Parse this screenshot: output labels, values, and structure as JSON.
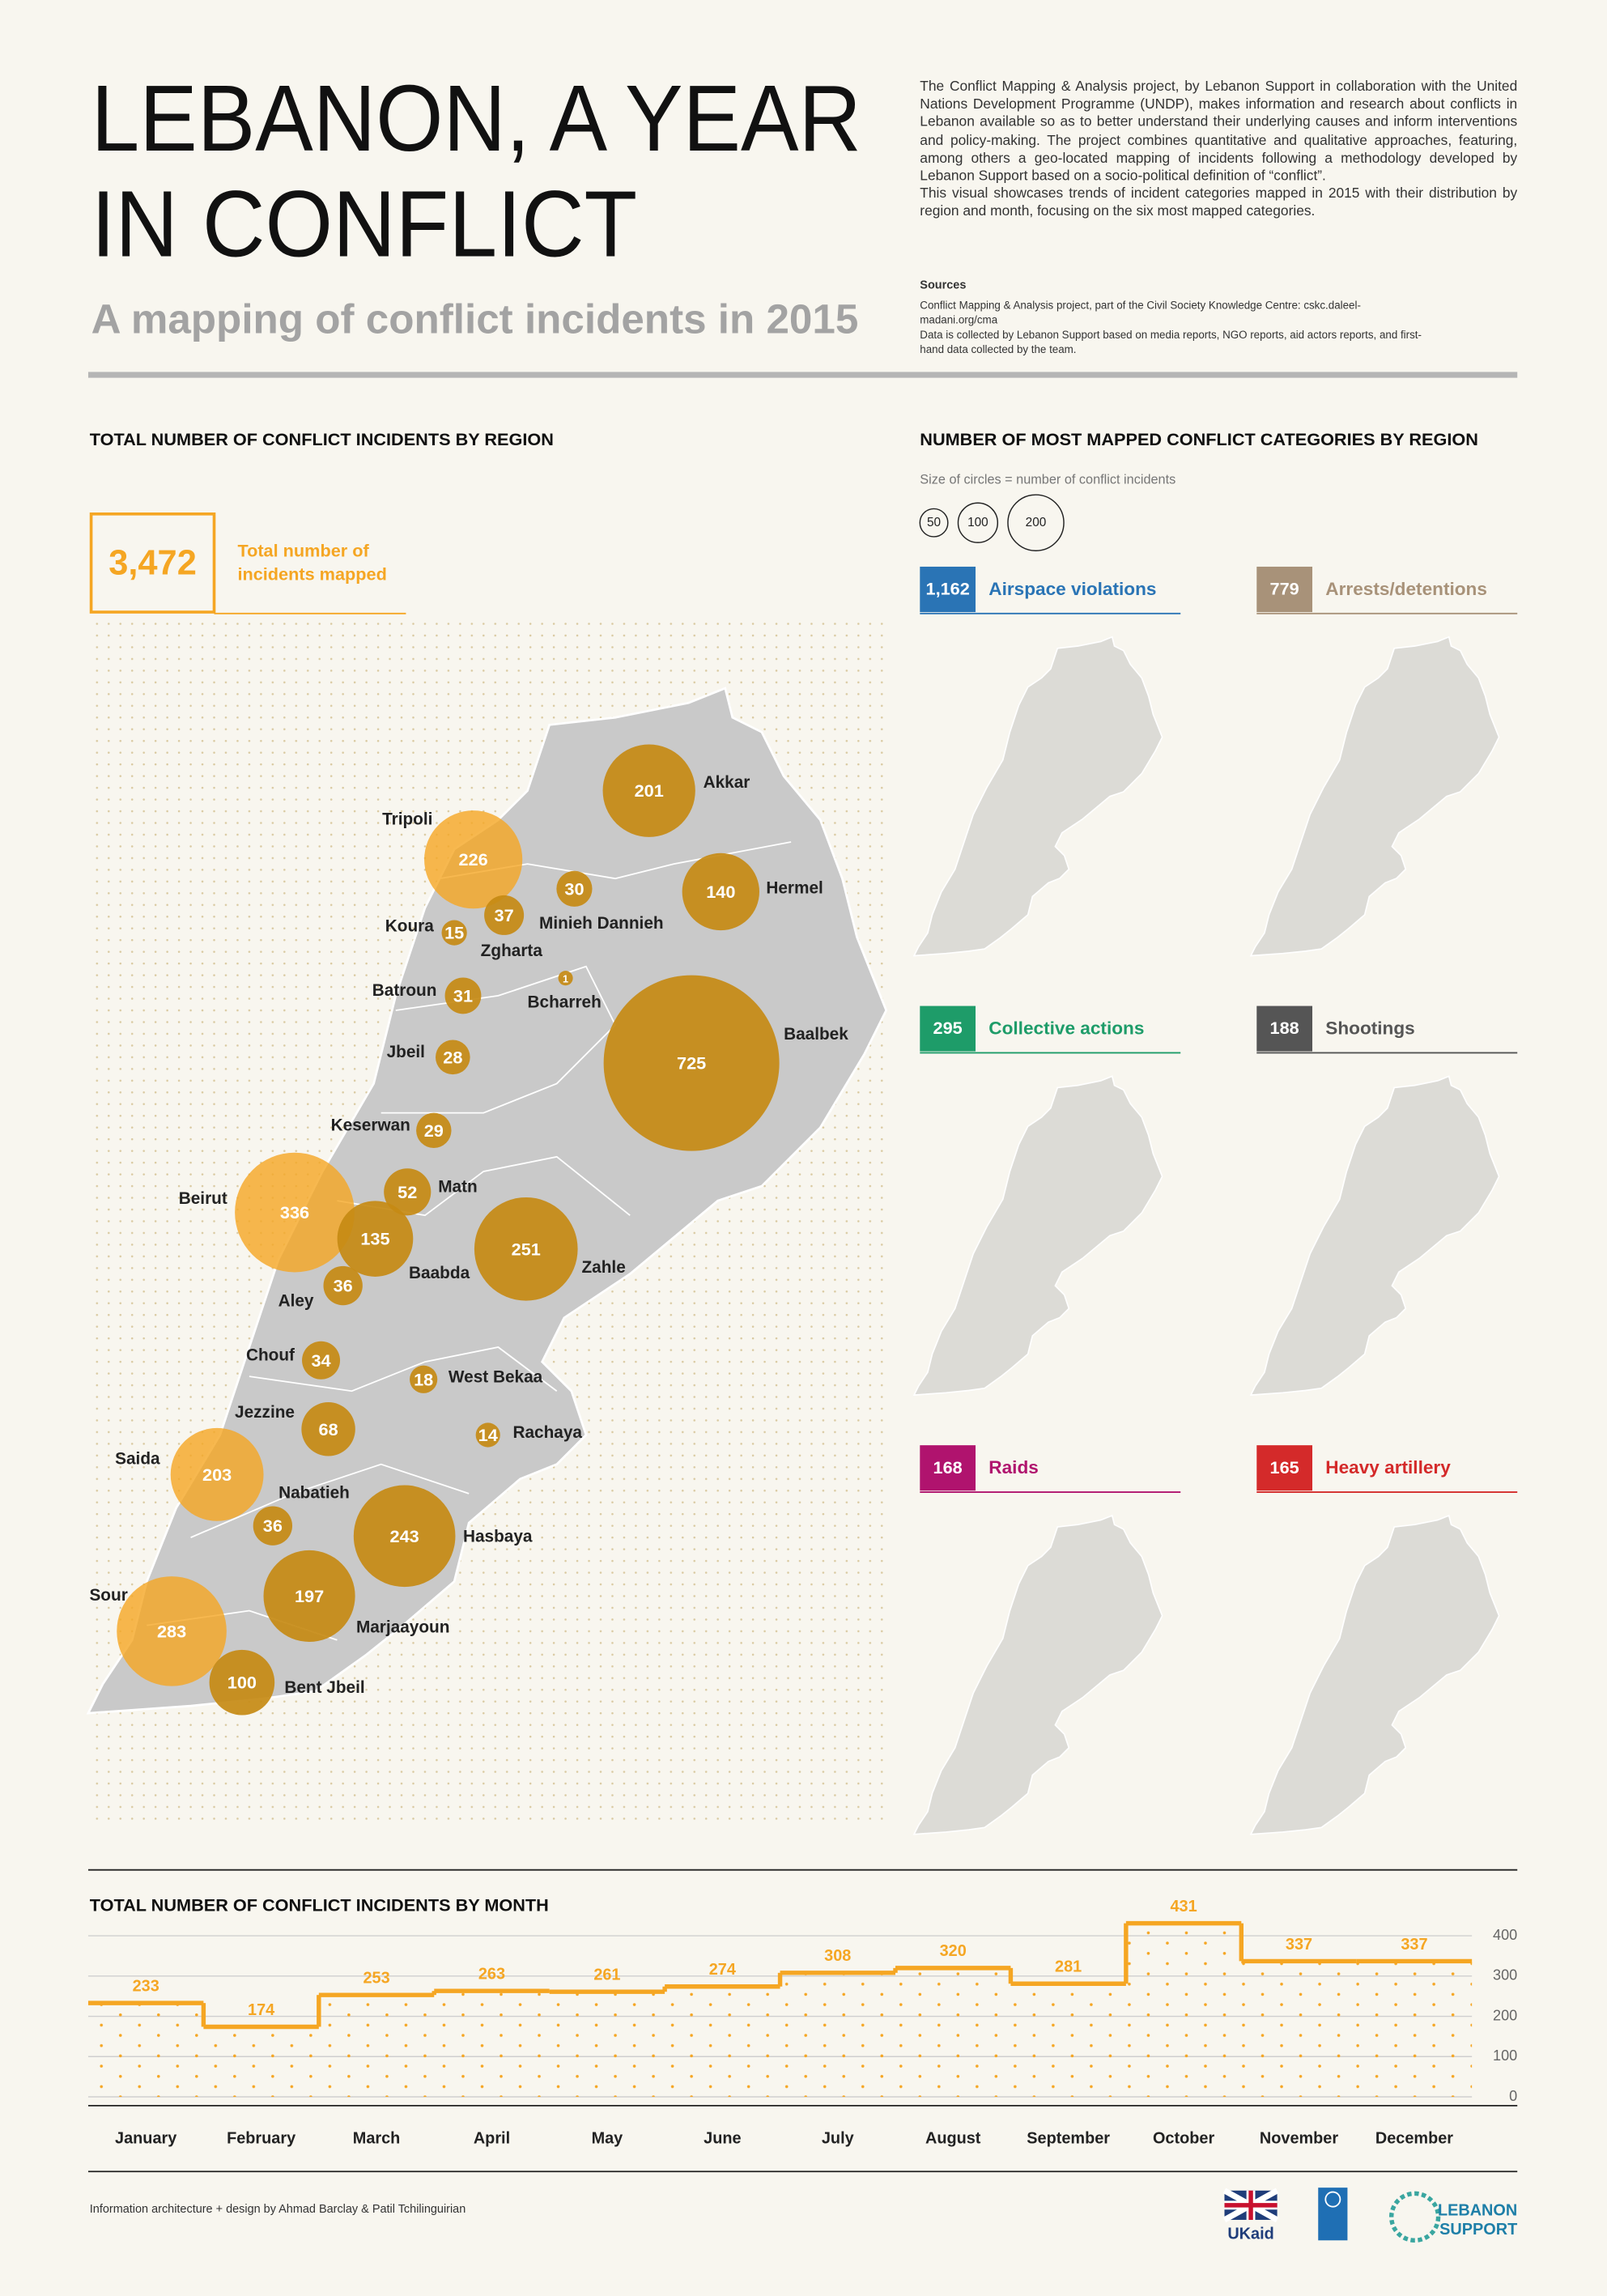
{
  "header": {
    "title_lines": [
      "LEBANON, A YEAR",
      "IN CONFLICT"
    ],
    "subtitle": "A mapping of conflict incidents in 2015",
    "description": "The Conflict Mapping & Analysis project, by Lebanon Support in collaboration with the United Nations Development Programme (UNDP), makes information and research about conflicts in Lebanon available so as to better understand their underlying causes and inform interventions and policy-making. The project combines quantitative and qualitative approaches, featuring, among others a geo-located mapping of incidents following a methodology developed by Lebanon Support based on a socio-political definition of “conflict”.",
    "description_2": "This visual showcases trends of incident categories mapped in 2015 with their distribution by region and month, focusing on the six most mapped categories.",
    "sources_title": "Sources",
    "sources": [
      "Conflict Mapping & Analysis project, part of the Civil Society Knowledge Centre: cskc.daleel-madani.org/cma",
      "Data is collected by Lebanon Support based on media reports, NGO reports, aid actors reports, and first-hand data collected by the team."
    ]
  },
  "region_map": {
    "title": "TOTAL NUMBER OF CONFLICT INCIDENTS BY REGION",
    "total": 3472,
    "total_label": "3,472",
    "total_caption": [
      "Total number of",
      "incidents mapped"
    ],
    "color": "#c68a14",
    "regions": [
      {
        "name": "Akkar",
        "value": 201
      },
      {
        "name": "Tripoli",
        "value": 226
      },
      {
        "name": "Minieh Dannieh",
        "value": 30
      },
      {
        "name": "Hermel",
        "value": 140
      },
      {
        "name": "Koura",
        "value": 15
      },
      {
        "name": "Zgharta",
        "value": 37
      },
      {
        "name": "Batroun",
        "value": 31
      },
      {
        "name": "Bcharreh",
        "value": 1
      },
      {
        "name": "Baalbek",
        "value": 725
      },
      {
        "name": "Jbeil",
        "value": 28
      },
      {
        "name": "Keserwan",
        "value": 29
      },
      {
        "name": "Matn",
        "value": 52
      },
      {
        "name": "Beirut",
        "value": 336
      },
      {
        "name": "Baabda",
        "value": 135
      },
      {
        "name": "Zahle",
        "value": 251
      },
      {
        "name": "Aley",
        "value": 36
      },
      {
        "name": "Chouf",
        "value": 34
      },
      {
        "name": "West Bekaa",
        "value": 18
      },
      {
        "name": "Jezzine",
        "value": 68
      },
      {
        "name": "Rachaya",
        "value": 14
      },
      {
        "name": "Saida",
        "value": 203
      },
      {
        "name": "Nabatieh",
        "value": 36
      },
      {
        "name": "Hasbaya",
        "value": 243
      },
      {
        "name": "Marjaayoun",
        "value": 197
      },
      {
        "name": "Sour",
        "value": 283
      },
      {
        "name": "Bent Jbeil",
        "value": 100
      }
    ]
  },
  "categories_panel": {
    "title": "NUMBER OF MOST MAPPED CONFLICT CATEGORIES BY REGION",
    "size_note": "Size of circles = number of conflict incidents",
    "size_legend": [
      50,
      100,
      200
    ],
    "categories": [
      {
        "name": "Airspace violations",
        "total": 1162,
        "total_label": "1,162",
        "color": "#2a74b5"
      },
      {
        "name": "Arrests/detentions",
        "total": 779,
        "color": "#a89279"
      },
      {
        "name": "Collective actions",
        "total": 295,
        "color": "#1e9c69"
      },
      {
        "name": "Shootings",
        "total": 188,
        "color": "#555555"
      },
      {
        "name": "Raids",
        "total": 168,
        "color": "#b0136e"
      },
      {
        "name": "Heavy artillery",
        "total": 165,
        "color": "#d42a2a"
      }
    ]
  },
  "chart_data": {
    "type": "step",
    "title": "TOTAL NUMBER OF CONFLICT INCIDENTS BY MONTH",
    "categories": [
      "January",
      "February",
      "March",
      "April",
      "May",
      "June",
      "July",
      "August",
      "September",
      "October",
      "November",
      "December"
    ],
    "values": [
      233,
      174,
      253,
      263,
      261,
      274,
      308,
      320,
      281,
      431,
      337,
      337
    ],
    "color": "#f5a623",
    "ylim": [
      0,
      400
    ],
    "yticks": [
      0,
      100,
      200,
      300,
      400
    ],
    "grid": true
  },
  "footer": {
    "credit": "Information architecture + design by Ahmad Barclay & Patil Tchilinguirian",
    "logos": [
      "UKaid",
      "LEBANON",
      "SUPPORT"
    ]
  }
}
